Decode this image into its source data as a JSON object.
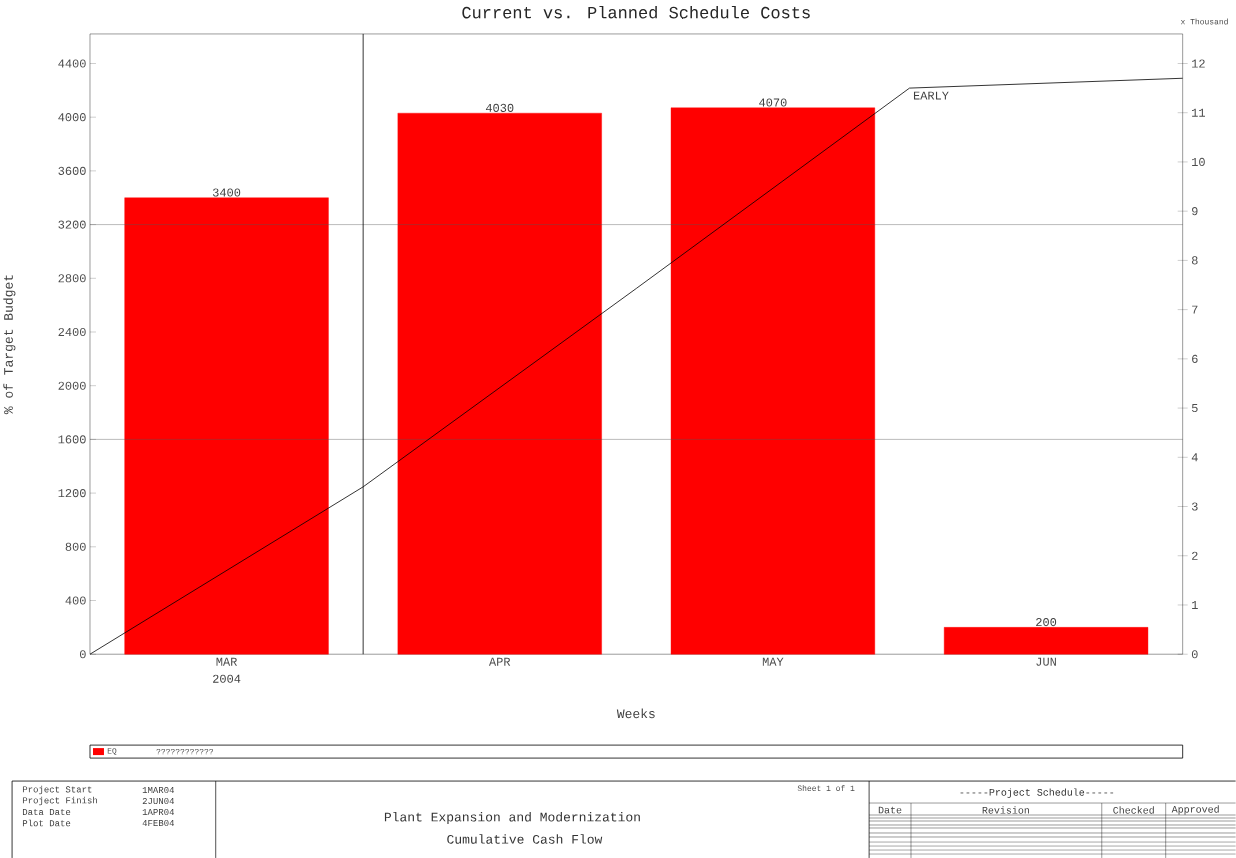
{
  "chart_data": {
    "type": "bar",
    "title": "Current vs. Planned Schedule Costs",
    "xlabel": "Weeks",
    "ylabel": "% of Target Budget",
    "y2label": "x Thousand",
    "categories": [
      null,
      "MAR",
      null,
      "APR",
      null,
      "MAY",
      null,
      "JUN",
      null
    ],
    "series": [
      {
        "name": "EQ",
        "color": "#ff0000",
        "values": [
          null,
          3400,
          null,
          4030,
          null,
          4070,
          null,
          200,
          null
        ],
        "value_labels": [
          null,
          "3400",
          null,
          "4030",
          null,
          "4070",
          null,
          "200",
          null
        ]
      },
      {
        "name": "EARLY",
        "type": "line",
        "axis": "y2",
        "color": "#000000",
        "values": [
          0,
          null,
          3.4,
          null,
          7.43,
          null,
          11.5,
          null,
          11.7
        ]
      }
    ],
    "ylim": [
      0,
      4620
    ],
    "yticks": [
      0,
      400,
      800,
      1200,
      1600,
      2000,
      2400,
      2800,
      3200,
      3600,
      4000,
      4400
    ],
    "y2lim": [
      0,
      12.6
    ],
    "y2ticks": [
      0,
      1,
      2,
      3,
      4,
      5,
      6,
      7,
      8,
      9,
      10,
      11,
      12
    ],
    "ref_lines": [
      {
        "axis": "y",
        "value": 1600,
        "color": "#555555"
      },
      {
        "axis": "y",
        "value": 3200,
        "color": "#555555"
      }
    ],
    "grid": false,
    "legend": "bottom",
    "annotations": [
      "2004",
      "????????????",
      "Project Start",
      "1MAR04",
      "Project Finish",
      "2JUN04",
      "Data Date",
      "1APR04",
      "Plot Date",
      "4FEB04",
      "Plant Expansion and Modernization",
      "Cumulative Cash Flow",
      "Sheet 1 of 1",
      "-----Project Schedule-----",
      "Date",
      "Revision",
      "Checked",
      "Approved"
    ]
  }
}
